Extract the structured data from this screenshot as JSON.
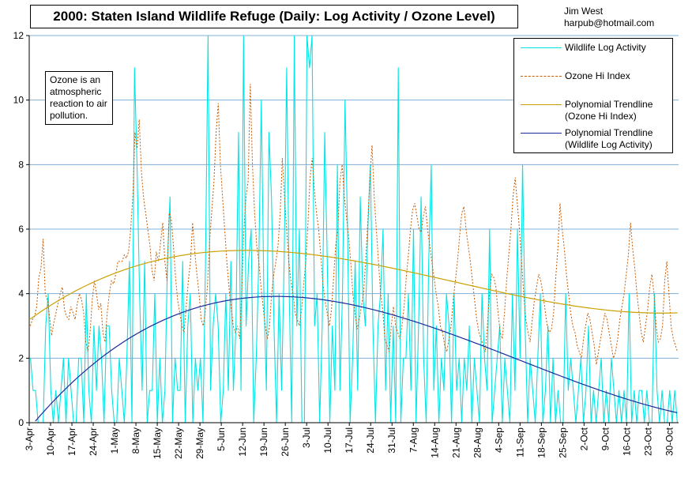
{
  "header": {
    "title": "2000: Staten Island Wildlife Refuge (Daily:  Log Activity / Ozone Level)",
    "author_name": "Jim West",
    "author_email": "harpub@hotmail.com"
  },
  "note": "Ozone is an atmospheric reaction to air pollution.",
  "legend": {
    "items": [
      {
        "label": "Wildlife Log Activity",
        "color": "#00e5e5",
        "style": "solid"
      },
      {
        "label": "Ozone Hi Index",
        "color": "#c85a00",
        "style": "dotted"
      },
      {
        "label": "Polynomial Trendline (Ozone Hi Index)",
        "color": "#c8a000",
        "style": "solid"
      },
      {
        "label": "Polynomial Trendline (Wildlife Log Activity)",
        "color": "#1a2a9a",
        "style": "solid"
      }
    ]
  },
  "chart_data": {
    "type": "line",
    "grid": true,
    "legend_position": "top-right",
    "ylim": [
      0,
      12
    ],
    "y_ticks": [
      "0",
      "2",
      "4",
      "6",
      "8",
      "10",
      "12"
    ],
    "x_tick_labels": [
      "3-Apr",
      "10-Apr",
      "17-Apr",
      "24-Apr",
      "1-May",
      "8-May",
      "15-May",
      "22-May",
      "29-May",
      "5-Jun",
      "12-Jun",
      "19-Jun",
      "26-Jun",
      "3-Jul",
      "10-Jul",
      "17-Jul",
      "24-Jul",
      "31-Jul",
      "7-Aug",
      "14-Aug",
      "21-Aug",
      "28-Aug",
      "4-Sep",
      "11-Sep",
      "18-Sep",
      "25-Sep",
      "2-Oct",
      "9-Oct",
      "16-Oct",
      "23-Oct",
      "30-Oct"
    ],
    "x_start": "3-Apr",
    "x_end": "2-Nov",
    "series": [
      {
        "name": "Wildlife Log Activity",
        "color": "#00e5e5",
        "values": [
          2,
          1,
          1,
          0,
          0,
          0,
          3,
          4,
          1,
          0,
          1,
          0,
          1,
          2,
          0,
          2,
          1,
          0,
          0,
          2,
          2,
          0,
          4,
          1,
          0,
          3,
          1,
          3,
          2,
          0,
          3,
          3,
          1,
          0,
          0,
          2,
          1,
          0,
          2,
          5,
          0,
          11,
          8,
          4,
          1,
          5,
          0,
          1,
          1,
          4,
          0,
          2,
          0,
          1,
          5,
          7,
          0,
          2,
          1,
          1,
          5,
          0,
          3,
          4,
          0,
          2,
          1,
          2,
          0,
          5,
          12,
          1,
          3,
          4,
          3,
          0,
          1,
          4,
          1,
          5,
          1,
          3,
          9,
          1,
          12,
          3,
          5,
          6,
          0,
          2,
          5,
          10,
          4,
          1,
          9,
          7,
          3,
          0,
          4,
          1,
          5,
          11,
          4,
          0,
          12,
          3,
          6,
          0,
          0,
          12,
          11,
          12,
          3,
          4,
          0,
          3,
          9,
          5,
          0,
          3,
          1,
          8,
          1,
          4,
          10,
          6,
          0,
          2,
          5,
          1,
          7,
          4,
          3,
          6,
          8,
          3,
          0,
          3,
          4,
          6,
          1,
          4,
          0,
          3,
          0,
          11,
          0,
          2,
          2,
          4,
          1,
          6,
          0,
          3,
          7,
          2,
          0,
          5,
          8,
          1,
          3,
          0,
          2,
          1,
          4,
          3,
          0,
          4,
          1,
          2,
          0,
          2,
          1,
          3,
          0,
          2,
          1,
          0,
          4,
          2,
          1,
          6,
          0,
          1,
          2,
          3,
          0,
          2,
          1,
          0,
          4,
          1,
          6,
          2,
          8,
          3,
          0,
          2,
          1,
          0,
          2,
          4,
          0,
          1,
          3,
          0,
          2,
          0,
          1,
          0,
          0,
          4,
          1,
          2,
          1,
          0,
          1,
          2,
          0,
          1,
          3,
          0,
          1,
          0,
          1,
          2,
          0,
          1,
          0,
          2,
          1,
          0,
          1,
          0,
          1,
          0,
          4,
          0,
          1,
          0,
          1,
          1,
          0,
          1,
          0,
          0,
          4,
          1,
          0,
          1,
          0,
          0,
          1,
          0,
          1,
          0
        ],
        "trendline": {
          "name": "Polynomial Trendline (Wildlife Log Activity)",
          "color": "#1a2a9a"
        }
      },
      {
        "name": "Ozone Hi Index",
        "color": "#c85a00",
        "values": [
          3.0,
          3.2,
          3.3,
          3.6,
          4.5,
          4.8,
          5.7,
          4.0,
          3.8,
          3.3,
          2.7,
          3.1,
          3.4,
          3.7,
          4.0,
          4.2,
          3.5,
          3.3,
          3.2,
          3.6,
          3.4,
          3.2,
          3.7,
          4.0,
          3.8,
          3.4,
          2.5,
          2.2,
          2.8,
          3.8,
          4.4,
          4.0,
          3.5,
          3.7,
          2.8,
          2.5,
          3.4,
          4.0,
          4.4,
          4.3,
          4.6,
          5.0,
          5.0,
          5.0,
          5.2,
          5.1,
          5.3,
          6.0,
          7.0,
          9.0,
          8.5,
          9.4,
          7.8,
          7.0,
          6.5,
          6.0,
          5.5,
          4.7,
          4.4,
          5.3,
          5.0,
          5.6,
          6.2,
          5.0,
          4.4,
          6.5,
          6.3,
          5.5,
          4.5,
          3.8,
          3.4,
          3.0,
          2.8,
          3.6,
          4.4,
          5.0,
          6.2,
          5.3,
          4.6,
          4.0,
          3.2,
          3.0,
          3.5,
          4.3,
          5.7,
          6.6,
          7.5,
          9.0,
          9.9,
          8.0,
          7.0,
          6.0,
          5.0,
          4.2,
          3.6,
          3.0,
          2.8,
          3.0,
          2.6,
          4.0,
          6.0,
          7.0,
          7.5,
          10.5,
          8.0,
          6.5,
          5.5,
          5.0,
          4.2,
          3.6,
          3.0,
          2.6,
          3.0,
          4.0,
          4.6,
          5.0,
          5.5,
          6.5,
          8.2,
          7.0,
          6.0,
          5.0,
          4.4,
          4.0,
          3.4,
          3.2,
          3.0,
          3.5,
          4.3,
          5.0,
          6.2,
          7.6,
          8.2,
          7.2,
          6.5,
          6.0,
          5.2,
          4.3,
          3.8,
          3.4,
          3.0,
          3.5,
          4.5,
          5.5,
          6.0,
          7.5,
          8.0,
          7.0,
          6.4,
          5.8,
          5.0,
          4.0,
          3.4,
          2.9,
          3.2,
          3.6,
          4.0,
          5.0,
          6.2,
          7.6,
          8.6,
          7.0,
          6.0,
          5.0,
          4.0,
          3.5,
          2.6,
          2.4,
          2.2,
          3.0,
          3.6,
          3.0,
          2.8,
          2.6,
          3.0,
          3.6,
          4.5,
          5.2,
          6.0,
          6.6,
          6.8,
          6.4,
          6.0,
          5.9,
          6.4,
          6.7,
          6.0,
          5.5,
          5.0,
          4.5,
          4.0,
          3.6,
          3.0,
          2.8,
          2.4,
          2.2,
          2.6,
          3.0,
          3.8,
          4.4,
          5.0,
          5.8,
          6.5,
          6.7,
          6.0,
          5.5,
          5.0,
          4.4,
          3.8,
          3.2,
          2.8,
          2.6,
          2.4,
          2.2,
          3.0,
          4.0,
          4.6,
          4.5,
          4.2,
          3.4,
          2.8,
          2.6,
          3.4,
          4.4,
          5.2,
          6.0,
          7.0,
          7.6,
          6.8,
          6.0,
          5.0,
          4.0,
          3.2,
          2.8,
          2.5,
          3.2,
          3.8,
          4.2,
          4.6,
          4.4,
          4.0,
          3.5,
          3.0,
          2.8,
          2.9,
          3.4,
          4.5,
          5.4,
          6.8,
          6.0,
          5.4,
          4.6,
          4.0,
          3.4,
          3.0,
          2.8,
          2.4,
          2.2,
          2.0,
          2.6,
          3.0,
          3.4,
          3.2,
          2.8,
          2.4,
          1.8,
          2.2,
          2.6,
          3.0,
          3.4,
          3.2,
          2.8,
          2.4,
          2.0,
          2.2,
          2.6,
          3.2,
          3.6,
          4.0,
          4.6,
          5.2,
          6.2,
          5.4,
          4.8,
          4.0,
          3.4,
          2.8,
          2.5,
          3.0,
          3.5,
          4.2,
          4.6,
          4.0,
          3.0,
          2.5,
          2.6,
          3.0,
          4.4,
          5.0,
          4.0,
          3.0,
          2.6,
          2.4,
          2.2
        ],
        "trendline": {
          "name": "Polynomial Trendline (Ozone Hi Index)",
          "color": "#c8a000"
        }
      }
    ]
  }
}
